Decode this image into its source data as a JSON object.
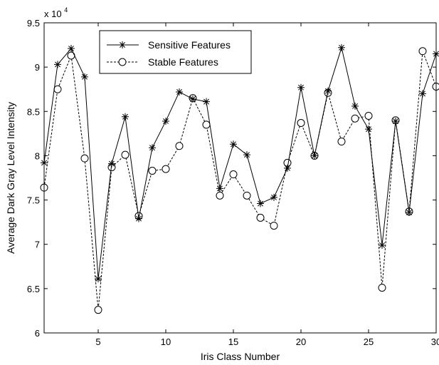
{
  "chart_data": {
    "type": "line",
    "title": "",
    "xlabel": "Iris Class Number",
    "ylabel": "Average Dark Gray Level Intensity",
    "y_exponent_label": "x 10",
    "y_exponent": "4",
    "xlim": [
      1,
      30
    ],
    "ylim": [
      60000,
      95000
    ],
    "x_ticks": [
      5,
      10,
      15,
      20,
      25,
      30
    ],
    "x_tick_labels": [
      "5",
      "10",
      "15",
      "20",
      "25",
      "30"
    ],
    "y_ticks": [
      60000,
      65000,
      70000,
      75000,
      80000,
      85000,
      90000,
      95000
    ],
    "y_tick_labels": [
      "6",
      "6.5",
      "7",
      "7.5",
      "8",
      "8.5",
      "9",
      "9.5"
    ],
    "grid": false,
    "legend_position": "top-left",
    "x": [
      1,
      2,
      3,
      4,
      5,
      6,
      7,
      8,
      9,
      10,
      11,
      12,
      13,
      14,
      15,
      16,
      17,
      18,
      19,
      20,
      21,
      22,
      23,
      24,
      25,
      26,
      27,
      28,
      29,
      30
    ],
    "series": [
      {
        "name": "Sensitive Features",
        "line_style": "solid",
        "marker": "asterisk",
        "color": "#000000",
        "values": [
          79200,
          90300,
          92100,
          88900,
          66100,
          79100,
          84400,
          72900,
          80900,
          83900,
          87200,
          86400,
          86100,
          76300,
          81300,
          80100,
          74600,
          75300,
          78600,
          87700,
          80000,
          87300,
          92200,
          85600,
          83000,
          69900,
          83900,
          73600,
          87000,
          91500
        ]
      },
      {
        "name": "Stable Features",
        "line_style": "dashed",
        "marker": "circle",
        "color": "#000000",
        "values": [
          76400,
          87500,
          91300,
          79700,
          62600,
          78700,
          80100,
          73200,
          78300,
          78500,
          81100,
          86500,
          83500,
          75500,
          77900,
          75500,
          73000,
          72100,
          79200,
          83700,
          80000,
          87100,
          81600,
          84200,
          84500,
          65100,
          84000,
          73700,
          91800,
          87800
        ]
      }
    ]
  }
}
